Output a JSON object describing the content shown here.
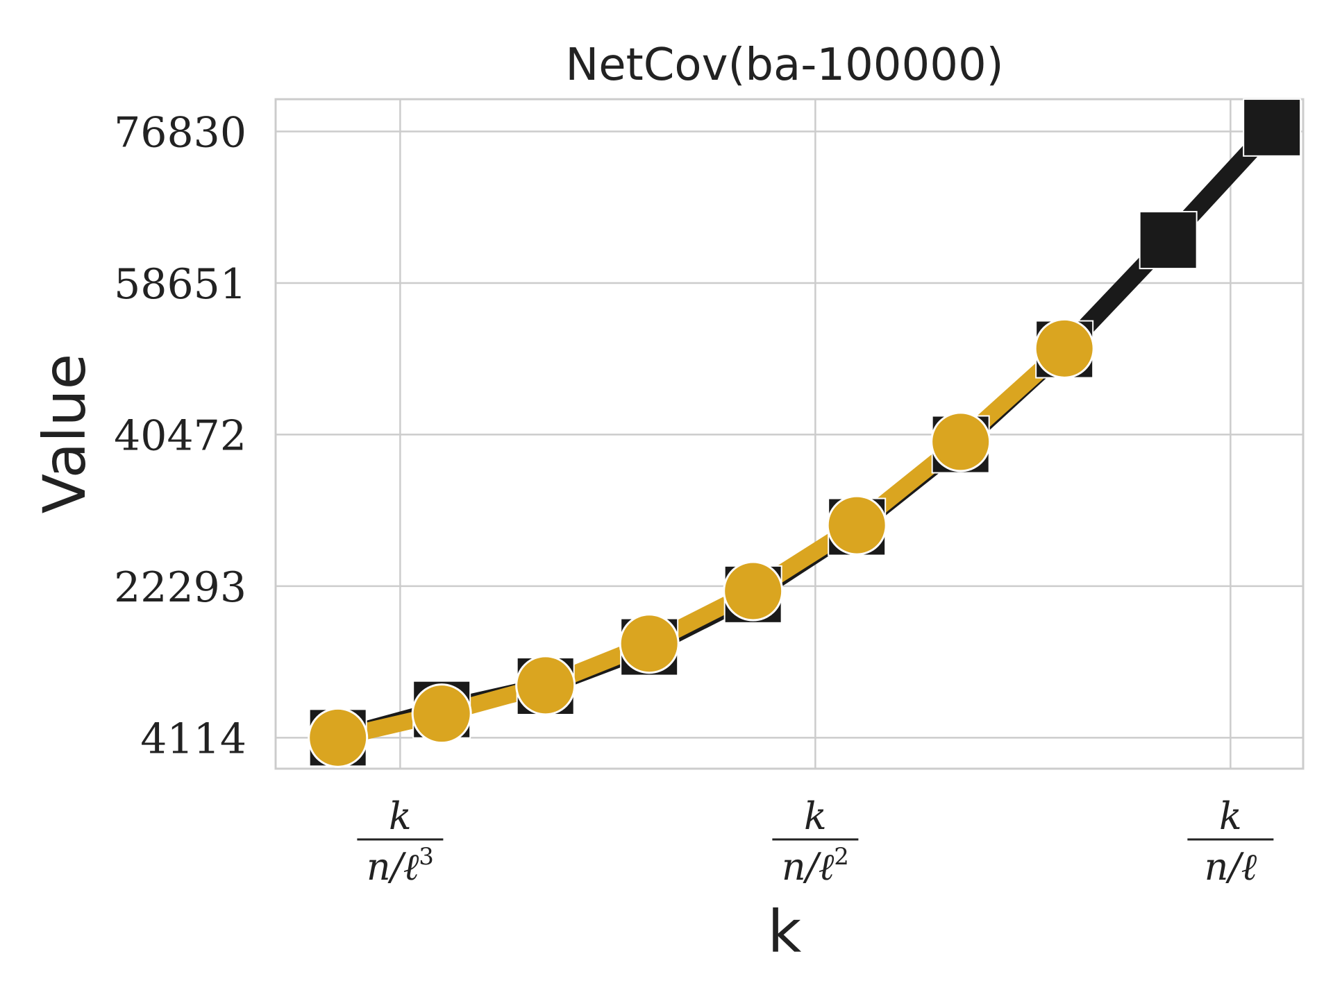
{
  "chart_data": {
    "type": "line",
    "title": "NetCov(ba-100000)",
    "xlabel": "k",
    "ylabel": "Value",
    "y_ticks": [
      4114,
      22293,
      40472,
      58651,
      76830
    ],
    "y_tick_labels": [
      "4114",
      "22293",
      "40472",
      "58651",
      "76830"
    ],
    "ylim": [
      400,
      80700
    ],
    "xlim": [
      -0.6,
      9.3
    ],
    "x_ticks": [
      0.6,
      4.6,
      8.6
    ],
    "x_tick_labels": [
      {
        "numerator": "k",
        "denominator": "n/ℓ",
        "exponent": "3"
      },
      {
        "numerator": "k",
        "denominator": "n/ℓ",
        "exponent": "2"
      },
      {
        "numerator": "k",
        "denominator": "n/ℓ",
        "exponent": ""
      }
    ],
    "grid": true,
    "legend": "none",
    "series": [
      {
        "marker": "square",
        "color": "#1a1a1a",
        "x": [
          0,
          1,
          2,
          3,
          4,
          5,
          6,
          7,
          8,
          9
        ],
        "values": [
          4114,
          7500,
          10300,
          15000,
          21300,
          29400,
          39300,
          50700,
          63800,
          77300
        ]
      },
      {
        "marker": "circle",
        "color": "#daa520",
        "x": [
          0,
          1,
          2,
          3,
          4,
          5,
          6,
          7
        ],
        "values": [
          4114,
          7000,
          10400,
          15400,
          21700,
          29600,
          39600,
          50800
        ]
      }
    ]
  }
}
